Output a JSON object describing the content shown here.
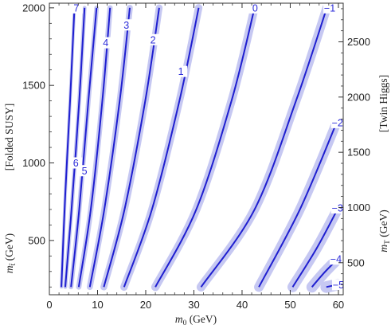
{
  "chart_data": {
    "type": "line",
    "xlabel_main": "m",
    "xlabel_sub": "0",
    "xlabel_unit": " (GeV)",
    "ylabel_left_main": "m",
    "ylabel_left_sub": "t̃",
    "ylabel_left_unit": " (GeV)",
    "ylabel_left_tag": "[Folded SUSY]",
    "ylabel_right_main": "m",
    "ylabel_right_sub": "T",
    "ylabel_right_unit": " (GeV)",
    "ylabel_right_tag": "[Twin Higgs]",
    "xlim": [
      0,
      61
    ],
    "ylim": [
      150,
      2030
    ],
    "ylim_right": [
      210,
      2850
    ],
    "x_ticks": [
      "0",
      "10",
      "20",
      "30",
      "40",
      "50",
      "60"
    ],
    "y_ticks_left": [
      "500",
      "1000",
      "1500",
      "2000"
    ],
    "y_ticks_right": [
      "500",
      "1000",
      "1500",
      "2000",
      "2500"
    ],
    "grid": false,
    "line_color": "#1f1fd0",
    "band_color": "#c6c8f2",
    "series": [
      {
        "name": "7",
        "label_at": [
          5.6,
          2000
        ],
        "points": [
          [
            2.5,
            200
          ],
          [
            3.3,
            800
          ],
          [
            4.3,
            1400
          ],
          [
            5.2,
            2000
          ]
        ]
      },
      {
        "name": "6",
        "label_at": [
          5.5,
          1000
        ],
        "points": [
          [
            3.3,
            200
          ],
          [
            4.6,
            700
          ],
          [
            6.2,
            1400
          ],
          [
            7.3,
            2000
          ]
        ]
      },
      {
        "name": "5",
        "label_at": [
          7.3,
          950
        ],
        "points": [
          [
            4.5,
            200
          ],
          [
            6.2,
            700
          ],
          [
            8.1,
            1400
          ],
          [
            9.8,
            2000
          ]
        ]
      },
      {
        "name": "4",
        "label_at": [
          11.7,
          1775
        ],
        "points": [
          [
            6.1,
            200
          ],
          [
            8.6,
            700
          ],
          [
            11.0,
            1400
          ],
          [
            12.6,
            2000
          ]
        ]
      },
      {
        "name": "3",
        "label_at": [
          16.0,
          1890
        ],
        "points": [
          [
            8.4,
            200
          ],
          [
            11.4,
            700
          ],
          [
            14.6,
            1400
          ],
          [
            16.7,
            2000
          ]
        ]
      },
      {
        "name": "2",
        "label_at": [
          21.5,
          1795
        ],
        "points": [
          [
            11.3,
            200
          ],
          [
            15.6,
            700
          ],
          [
            19.9,
            1400
          ],
          [
            22.8,
            2000
          ]
        ]
      },
      {
        "name": "1",
        "label_at": [
          27.3,
          1590
        ],
        "points": [
          [
            15.5,
            200
          ],
          [
            21.3,
            700
          ],
          [
            27.0,
            1400
          ],
          [
            31.0,
            2000
          ]
        ]
      },
      {
        "name": "0",
        "label_at": [
          42.7,
          2000
        ],
        "points": [
          [
            22.0,
            200
          ],
          [
            30.5,
            700
          ],
          [
            37.8,
            1400
          ],
          [
            42.6,
            2000
          ]
        ]
      },
      {
        "name": "−1",
        "label_at": [
          58.2,
          2000
        ],
        "points": [
          [
            31.5,
            200
          ],
          [
            42.6,
            700
          ],
          [
            51.2,
            1400
          ],
          [
            57.6,
            2000
          ]
        ]
      },
      {
        "name": "−2",
        "label_at": [
          59.8,
          1260
        ],
        "points": [
          [
            43.5,
            200
          ],
          [
            52.0,
            700
          ],
          [
            59.5,
            1250
          ]
        ]
      },
      {
        "name": "−3",
        "label_at": [
          59.8,
          710
        ],
        "points": [
          [
            50.5,
            200
          ],
          [
            55.5,
            450
          ],
          [
            59.8,
            700
          ]
        ]
      },
      {
        "name": "−4",
        "label_at": [
          59.5,
          380
        ],
        "points": [
          [
            54.5,
            200
          ],
          [
            57.0,
            290
          ],
          [
            59.5,
            370
          ]
        ]
      },
      {
        "name": "−5",
        "label_at": [
          60.0,
          215
        ],
        "points": [
          [
            57.5,
            200
          ],
          [
            59.8,
            215
          ]
        ]
      }
    ]
  }
}
